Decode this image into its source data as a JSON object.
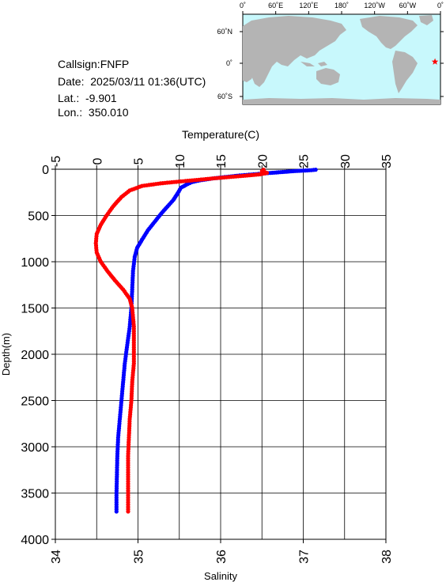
{
  "meta": {
    "callsign": "Callsign:FNFP",
    "date": "Date:  2025/03/11 01:36(UTC)",
    "lat": "Lat.:  -9.901",
    "lon": "Lon.:  350.010"
  },
  "map": {
    "top_labels": [
      "0˚",
      "60˚E",
      "120˚E",
      "180˚",
      "120˚W",
      "60˚W",
      "0˚"
    ],
    "lat_labels": [
      "60˚N",
      "0˚",
      "60˚S"
    ],
    "ocean_color": "#c8f8fc",
    "land_color": "#b4b4b4",
    "marker": "red-star",
    "marker_color": "#ff0000"
  },
  "chart_data": {
    "type": "scatter",
    "ylabel": "Depth(m)",
    "top_axis_label": "Temperature(C)",
    "bottom_axis_label": "Salinity",
    "ylim": [
      4000,
      0
    ],
    "temperature_lim": [
      -5,
      35
    ],
    "salinity_lim": [
      34,
      38
    ],
    "y_ticks": [
      0,
      500,
      1000,
      1500,
      2000,
      2500,
      3000,
      3500,
      4000
    ],
    "temperature_ticks": [
      -5,
      0,
      5,
      10,
      15,
      20,
      25,
      30,
      35
    ],
    "salinity_ticks": [
      34,
      35,
      36,
      37,
      38
    ],
    "grid": true,
    "series": [
      {
        "quantity": "temperature",
        "color": "#0000ff",
        "points": [
          [
            26.5,
            5
          ],
          [
            26.0,
            10
          ],
          [
            25.0,
            15
          ],
          [
            24.0,
            20
          ],
          [
            22.5,
            30
          ],
          [
            21.0,
            40
          ],
          [
            19.0,
            55
          ],
          [
            17.0,
            70
          ],
          [
            15.5,
            85
          ],
          [
            14.0,
            100
          ],
          [
            12.5,
            120
          ],
          [
            11.5,
            140
          ],
          [
            10.8,
            170
          ],
          [
            10.2,
            200
          ],
          [
            9.8,
            260
          ],
          [
            9.3,
            330
          ],
          [
            8.6,
            400
          ],
          [
            7.8,
            480
          ],
          [
            7.0,
            570
          ],
          [
            6.2,
            660
          ],
          [
            5.5,
            760
          ],
          [
            4.9,
            850
          ],
          [
            4.6,
            950
          ],
          [
            4.4,
            1100
          ],
          [
            4.3,
            1300
          ],
          [
            4.2,
            1500
          ],
          [
            4.0,
            1700
          ],
          [
            3.7,
            1900
          ],
          [
            3.4,
            2100
          ],
          [
            3.2,
            2300
          ],
          [
            3.0,
            2500
          ],
          [
            2.8,
            2700
          ],
          [
            2.6,
            2900
          ],
          [
            2.5,
            3100
          ],
          [
            2.45,
            3300
          ],
          [
            2.4,
            3500
          ],
          [
            2.4,
            3700
          ]
        ]
      },
      {
        "quantity": "salinity",
        "color": "#ff0000",
        "points": [
          [
            36.52,
            5
          ],
          [
            36.5,
            20
          ],
          [
            36.56,
            40
          ],
          [
            36.48,
            55
          ],
          [
            36.3,
            70
          ],
          [
            36.1,
            85
          ],
          [
            35.9,
            100
          ],
          [
            35.6,
            125
          ],
          [
            35.3,
            150
          ],
          [
            35.05,
            180
          ],
          [
            34.9,
            230
          ],
          [
            34.8,
            300
          ],
          [
            34.7,
            400
          ],
          [
            34.62,
            500
          ],
          [
            34.55,
            600
          ],
          [
            34.5,
            700
          ],
          [
            34.49,
            800
          ],
          [
            34.5,
            900
          ],
          [
            34.55,
            1000
          ],
          [
            34.63,
            1100
          ],
          [
            34.72,
            1200
          ],
          [
            34.82,
            1300
          ],
          [
            34.9,
            1400
          ],
          [
            34.93,
            1500
          ],
          [
            34.95,
            1700
          ],
          [
            34.95,
            1900
          ],
          [
            34.95,
            2100
          ],
          [
            34.93,
            2300
          ],
          [
            34.92,
            2500
          ],
          [
            34.9,
            2700
          ],
          [
            34.89,
            2900
          ],
          [
            34.88,
            3100
          ],
          [
            34.88,
            3300
          ],
          [
            34.88,
            3500
          ],
          [
            34.88,
            3700
          ]
        ]
      }
    ]
  }
}
